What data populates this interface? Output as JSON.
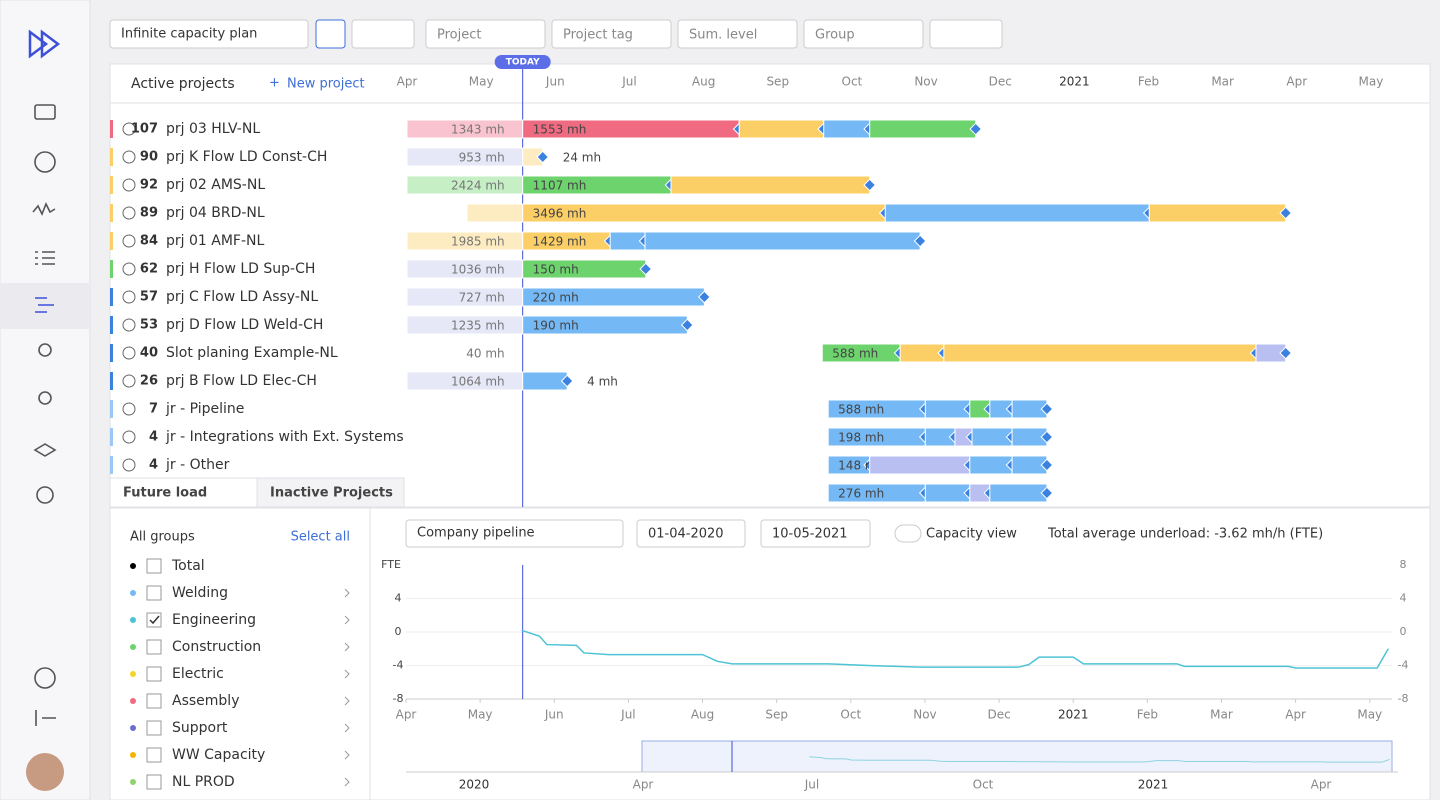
{
  "toolbar": {
    "plan": "Infinite capacity plan",
    "filters": [
      "Project",
      "Project tag",
      "Sum. level",
      "Group"
    ]
  },
  "gantt": {
    "title": "Active projects",
    "new_project": "New project",
    "today_label": "TODAY",
    "today": 1.56,
    "months": [
      "Apr",
      "May",
      "Jun",
      "Jul",
      "Aug",
      "Sep",
      "Oct",
      "Nov",
      "Dec",
      "2021",
      "Feb",
      "Mar",
      "Apr",
      "May"
    ],
    "rows": [
      {
        "number": 107,
        "name": "prj 03 HLV-NL",
        "color": "#f06b82",
        "segments": [
          {
            "start": 0,
            "end": 1.56,
            "color": "#f9c4cf",
            "label": "1343 mh"
          },
          {
            "start": 1.56,
            "end": 4.48,
            "color": "#f06b82",
            "label": "1553 mh"
          },
          {
            "start": 4.48,
            "end": 5.62,
            "color": "#fbcf65"
          },
          {
            "start": 5.62,
            "end": 6.24,
            "color": "#74b9f5"
          },
          {
            "start": 6.24,
            "end": 7.67,
            "color": "#6dd36d"
          }
        ]
      },
      {
        "number": 90,
        "name": "prj K Flow LD Const-CH",
        "color": "#fbcf65",
        "segments": [
          {
            "start": 0,
            "end": 1.56,
            "color": "#e6e8f8",
            "label": "953 mh"
          },
          {
            "start": 1.56,
            "end": 1.83,
            "color": "#fdecc2"
          }
        ],
        "after": "24 mh"
      },
      {
        "number": 92,
        "name": "prj 02 AMS-NL",
        "color": "#fbcf65",
        "segments": [
          {
            "start": 0,
            "end": 1.56,
            "color": "#c6efc6",
            "label": "2424 mh"
          },
          {
            "start": 1.56,
            "end": 3.56,
            "color": "#6dd36d",
            "label": "1107 mh"
          },
          {
            "start": 3.56,
            "end": 6.24,
            "color": "#fbcf65"
          }
        ]
      },
      {
        "number": 89,
        "name": "prj 04 BRD-NL",
        "color": "#fbcf65",
        "segments": [
          {
            "start": 0.81,
            "end": 1.56,
            "color": "#fdecc2"
          },
          {
            "start": 1.56,
            "end": 6.45,
            "color": "#fbcf65",
            "label": "3496 mh"
          },
          {
            "start": 6.45,
            "end": 10.01,
            "color": "#74b9f5"
          },
          {
            "start": 10.01,
            "end": 11.85,
            "color": "#fbcf65"
          }
        ]
      },
      {
        "number": 84,
        "name": "prj 01 AMF-NL",
        "color": "#fbcf65",
        "segments": [
          {
            "start": 0,
            "end": 1.56,
            "color": "#fdecc2",
            "label": "1985 mh"
          },
          {
            "start": 1.56,
            "end": 2.74,
            "color": "#fbcf65",
            "label": "1429 mh"
          },
          {
            "start": 2.74,
            "end": 3.21,
            "color": "#74b9f5"
          },
          {
            "start": 3.21,
            "end": 6.92,
            "color": "#74b9f5"
          }
        ]
      },
      {
        "number": 62,
        "name": "prj H Flow LD Sup-CH",
        "color": "#6dd36d",
        "segments": [
          {
            "start": 0,
            "end": 1.56,
            "color": "#e6e8f8",
            "label": "1036 mh"
          },
          {
            "start": 1.56,
            "end": 3.22,
            "color": "#6dd36d",
            "label": "150 mh"
          }
        ]
      },
      {
        "number": 57,
        "name": "prj C Flow LD Assy-NL",
        "color": "#3b82e0",
        "segments": [
          {
            "start": 0,
            "end": 1.56,
            "color": "#e6e8f8",
            "label": "727 mh"
          },
          {
            "start": 1.56,
            "end": 4.01,
            "color": "#74b9f5",
            "label": "220 mh"
          }
        ]
      },
      {
        "number": 53,
        "name": "prj D Flow LD Weld-CH",
        "color": "#3b82e0",
        "segments": [
          {
            "start": 0,
            "end": 1.56,
            "color": "#e6e8f8",
            "label": "1235 mh"
          },
          {
            "start": 1.56,
            "end": 3.78,
            "color": "#74b9f5",
            "label": "190 mh"
          }
        ]
      },
      {
        "number": 40,
        "name": "Slot planing Example-NL",
        "color": "#3b82e0",
        "segments": [
          {
            "start": 0,
            "end": 1.56,
            "color": "none",
            "label": "40 mh"
          },
          {
            "start": 5.6,
            "end": 6.65,
            "color": "#6dd36d",
            "label": "588 mh"
          },
          {
            "start": 6.65,
            "end": 7.24,
            "color": "#fbcf65"
          },
          {
            "start": 7.24,
            "end": 11.45,
            "color": "#fbcf65"
          },
          {
            "start": 11.45,
            "end": 11.85,
            "color": "#b9bff0"
          }
        ]
      },
      {
        "number": 26,
        "name": "prj B Flow LD Elec-CH",
        "color": "#3b82e0",
        "segments": [
          {
            "start": 0,
            "end": 1.56,
            "color": "#e6e8f8",
            "label": "1064 mh"
          },
          {
            "start": 1.56,
            "end": 2.16,
            "color": "#74b9f5"
          }
        ],
        "after": "4 mh"
      },
      {
        "number": 7,
        "name": "jr - Pipeline",
        "color": "#9cc8f5",
        "segments": [
          {
            "start": 5.68,
            "end": 6.99,
            "color": "#74b9f5",
            "label": "588 mh"
          },
          {
            "start": 6.99,
            "end": 7.59,
            "color": "#74b9f5"
          },
          {
            "start": 7.59,
            "end": 7.86,
            "color": "#6dd36d"
          },
          {
            "start": 7.86,
            "end": 8.16,
            "color": "#74b9f5"
          },
          {
            "start": 8.16,
            "end": 8.63,
            "color": "#74b9f5"
          }
        ]
      },
      {
        "number": 4,
        "name": "jr - Integrations with Ext. Systems",
        "color": "#9cc8f5",
        "segments": [
          {
            "start": 5.68,
            "end": 6.99,
            "color": "#74b9f5",
            "label": "198 mh"
          },
          {
            "start": 6.99,
            "end": 7.39,
            "color": "#74b9f5"
          },
          {
            "start": 7.39,
            "end": 7.62,
            "color": "#b9bff0"
          },
          {
            "start": 7.62,
            "end": 8.16,
            "color": "#74b9f5"
          },
          {
            "start": 8.16,
            "end": 8.63,
            "color": "#74b9f5"
          }
        ]
      },
      {
        "number": 4,
        "name": "jr - Other",
        "color": "#9cc8f5",
        "segments": [
          {
            "start": 5.68,
            "end": 6.24,
            "color": "#74b9f5",
            "label": "148 mh"
          },
          {
            "start": 6.24,
            "end": 7.59,
            "color": "#b9bff0"
          },
          {
            "start": 7.59,
            "end": 8.16,
            "color": "#74b9f5"
          },
          {
            "start": 8.16,
            "end": 8.63,
            "color": "#74b9f5"
          }
        ]
      },
      {
        "segments": [
          {
            "start": 5.68,
            "end": 6.99,
            "color": "#74b9f5",
            "label": "276 mh"
          },
          {
            "start": 6.99,
            "end": 7.59,
            "color": "#74b9f5"
          },
          {
            "start": 7.59,
            "end": 7.86,
            "color": "#b9bff0"
          },
          {
            "start": 7.86,
            "end": 8.63,
            "color": "#74b9f5"
          }
        ]
      }
    ]
  },
  "tabs": [
    "Future load",
    "Inactive Projects"
  ],
  "groups": {
    "title": "All groups",
    "select_all": "Select all",
    "items": [
      {
        "name": "Total",
        "color": "#000000",
        "checked": false
      },
      {
        "name": "Welding",
        "color": "#74b9f5",
        "checked": false
      },
      {
        "name": "Engineering",
        "color": "#4dc3d6",
        "checked": true
      },
      {
        "name": "Construction",
        "color": "#6dd36d",
        "checked": false
      },
      {
        "name": "Electric",
        "color": "#f5d42a",
        "checked": false
      },
      {
        "name": "Assembly",
        "color": "#f06b82",
        "checked": false
      },
      {
        "name": "Support",
        "color": "#6a6fcf",
        "checked": false
      },
      {
        "name": "WW Capacity",
        "color": "#f5b400",
        "checked": false
      },
      {
        "name": "NL PROD",
        "color": "#8fd36d",
        "checked": false
      }
    ]
  },
  "load": {
    "pipeline": "Company pipeline",
    "from": "01-04-2020",
    "to": "10-05-2021",
    "capacity_view": "Capacity view",
    "summary": "Total average underload: -3.62 mh/h (FTE)"
  },
  "chart_data": {
    "type": "line",
    "ylabel": "FTE",
    "ylim": [
      -8,
      8
    ],
    "yticks": [
      -8,
      -4,
      0,
      4
    ],
    "y2lim": [
      -8,
      8
    ],
    "y2ticks": [
      -8,
      -4,
      0,
      4,
      8
    ],
    "xlim": [
      0,
      13.3
    ],
    "xticks": [
      0,
      1,
      2,
      3,
      4,
      5,
      6,
      7,
      8,
      9,
      10,
      11,
      12,
      13
    ],
    "xticklabels": [
      "Apr",
      "May",
      "Jun",
      "Jul",
      "Aug",
      "Sep",
      "Oct",
      "Nov",
      "Dec",
      "2021",
      "Feb",
      "Mar",
      "Apr",
      "May"
    ],
    "series": [
      {
        "name": "Engineering",
        "color": "#4dc3d6",
        "x": [
          1.56,
          1.8,
          1.9,
          2.3,
          2.4,
          2.74,
          4.0,
          4.2,
          4.4,
          5.7,
          6.24,
          6.92,
          8.26,
          8.4,
          8.54,
          9.0,
          9.14,
          10.4,
          10.5,
          11.9,
          12.0,
          13.1,
          13.25
        ],
        "values": [
          0.2,
          -0.5,
          -1.5,
          -1.6,
          -2.5,
          -2.7,
          -2.7,
          -3.5,
          -3.8,
          -3.8,
          -4.0,
          -4.2,
          -4.2,
          -3.9,
          -3.0,
          -3.0,
          -3.8,
          -3.8,
          -4.1,
          -4.1,
          -4.3,
          -4.3,
          -2.0
        ]
      }
    ],
    "overview_labels": [
      "2020",
      "Apr",
      "Jul",
      "Oct",
      "2021",
      "Apr"
    ]
  }
}
